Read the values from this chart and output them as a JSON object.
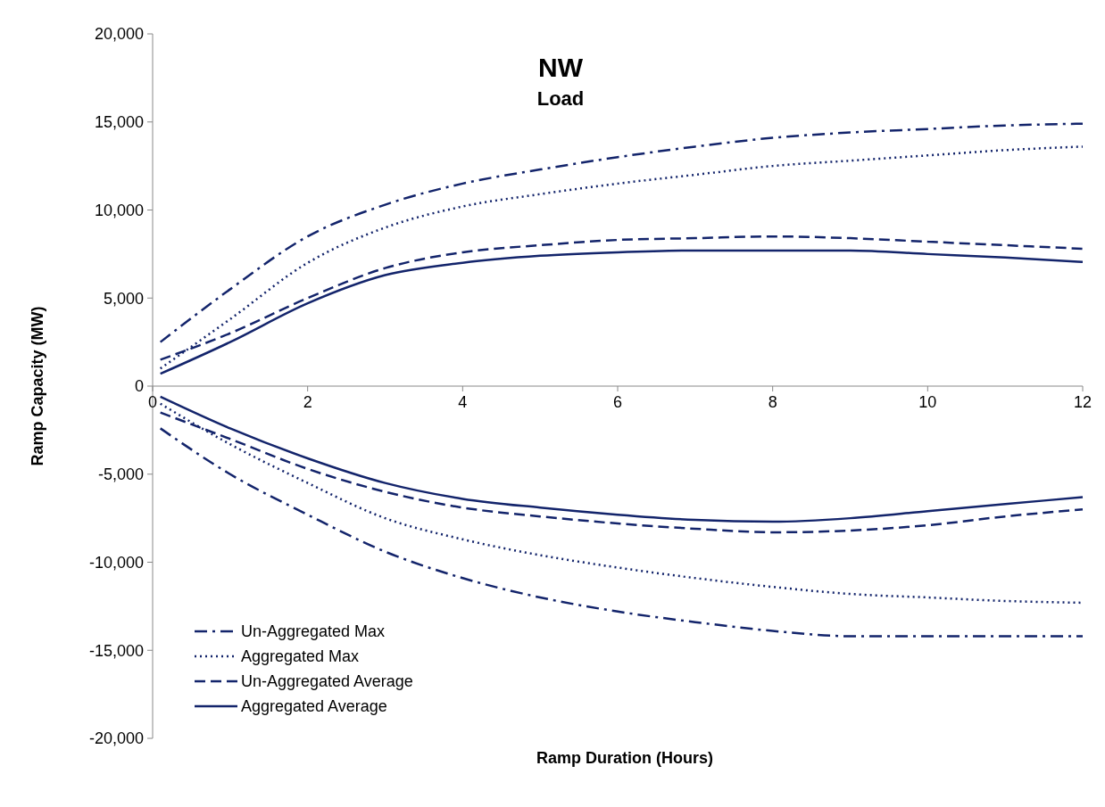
{
  "chart_data": {
    "type": "line",
    "title": "NW",
    "subtitle": "Load",
    "xlabel": "Ramp Duration (Hours)",
    "ylabel": "Ramp Capacity (MW)",
    "x": [
      0.1,
      1,
      2,
      3,
      4,
      5,
      6,
      7,
      8,
      9,
      10,
      11,
      12
    ],
    "xlim": [
      0,
      12
    ],
    "xticks": [
      0,
      2,
      4,
      6,
      8,
      10,
      12
    ],
    "ylim": [
      -20000,
      20000
    ],
    "yticks": [
      {
        "value": -20000,
        "label": "-20,000"
      },
      {
        "value": -15000,
        "label": "-15,000"
      },
      {
        "value": -10000,
        "label": "-10,000"
      },
      {
        "value": -5000,
        "label": "-5,000"
      },
      {
        "value": 0,
        "label": "0"
      },
      {
        "value": 5000,
        "label": "5,000"
      },
      {
        "value": 10000,
        "label": "10,000"
      },
      {
        "value": 15000,
        "label": "15,000"
      },
      {
        "value": 20000,
        "label": "20,000"
      }
    ],
    "grid": false,
    "legend": "bottom left",
    "series": [
      {
        "name": "Un-Aggregated Max",
        "color": "#13246b",
        "line_style": "dashdot",
        "values": [
          2500,
          5500,
          8500,
          10300,
          11500,
          12300,
          13000,
          13600,
          14100,
          14400,
          14600,
          14800,
          14900
        ]
      },
      {
        "name": "Aggregated Max",
        "color": "#13246b",
        "line_style": "dotted",
        "values": [
          1000,
          3800,
          7000,
          9000,
          10200,
          10900,
          11500,
          12000,
          12500,
          12800,
          13100,
          13400,
          13600
        ]
      },
      {
        "name": "Un-Aggregated Average",
        "color": "#13246b",
        "line_style": "dashed",
        "values": [
          1500,
          3000,
          5000,
          6700,
          7600,
          8000,
          8300,
          8400,
          8500,
          8400,
          8200,
          8000,
          7800
        ]
      },
      {
        "name": "Aggregated Average",
        "color": "#13246b",
        "line_style": "solid",
        "values": [
          700,
          2500,
          4700,
          6300,
          7000,
          7400,
          7600,
          7700,
          7700,
          7700,
          7500,
          7300,
          7050
        ]
      },
      {
        "color": "#13246b",
        "line_style": "dashdot",
        "values": [
          -2400,
          -5000,
          -7300,
          -9400,
          -10900,
          -12000,
          -12800,
          -13400,
          -13900,
          -14200,
          -14200,
          -14200,
          -14200
        ]
      },
      {
        "color": "#13246b",
        "line_style": "dotted",
        "values": [
          -1000,
          -3300,
          -5500,
          -7500,
          -8700,
          -9600,
          -10300,
          -10900,
          -11400,
          -11800,
          -12000,
          -12200,
          -12300
        ]
      },
      {
        "color": "#13246b",
        "line_style": "dashed",
        "values": [
          -1500,
          -3000,
          -4700,
          -6000,
          -6900,
          -7400,
          -7800,
          -8100,
          -8300,
          -8200,
          -7900,
          -7400,
          -7000
        ]
      },
      {
        "color": "#13246b",
        "line_style": "solid",
        "values": [
          -600,
          -2400,
          -4100,
          -5500,
          -6400,
          -6900,
          -7300,
          -7600,
          -7700,
          -7500,
          -7100,
          -6700,
          -6300
        ]
      }
    ]
  }
}
